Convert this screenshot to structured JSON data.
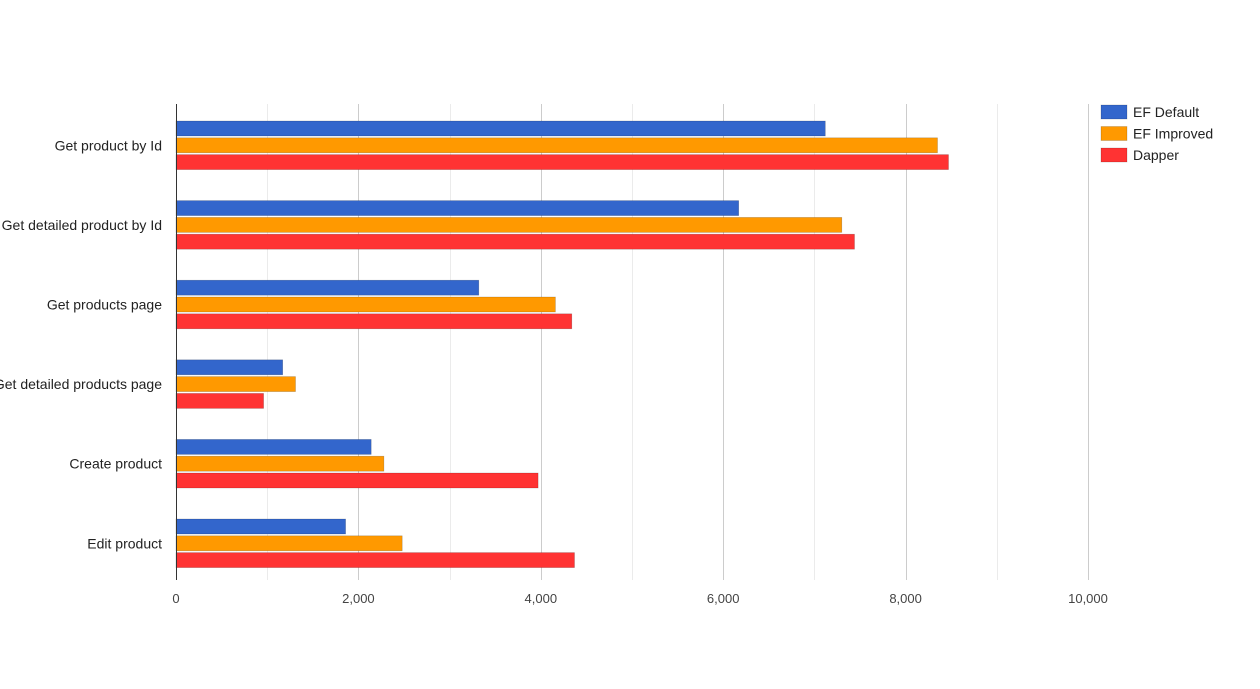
{
  "chart_data": {
    "type": "bar",
    "orientation": "horizontal",
    "title": "",
    "xlabel": "",
    "ylabel": "",
    "categories": [
      "Get product by Id",
      "Get detailed product by Id",
      "Get products page",
      "Get detailed products page",
      "Create product",
      "Edit product"
    ],
    "series": [
      {
        "name": "EF Default",
        "color": "#3366cc",
        "values": [
          7120,
          6170,
          3320,
          1170,
          2140,
          1860
        ]
      },
      {
        "name": "EF Improved",
        "color": "#ff9900",
        "values": [
          8350,
          7300,
          4160,
          1310,
          2280,
          2480
        ]
      },
      {
        "name": "Dapper",
        "color": "#ff3333",
        "values": [
          8470,
          7440,
          4340,
          960,
          3970,
          4370
        ]
      }
    ],
    "xlim": [
      0,
      10000
    ],
    "ticks": [
      {
        "value": 0,
        "label": "0"
      },
      {
        "value": 2000,
        "label": "2,000"
      },
      {
        "value": 4000,
        "label": "4,000"
      },
      {
        "value": 6000,
        "label": "6,000"
      },
      {
        "value": 8000,
        "label": "8,000"
      },
      {
        "value": 10000,
        "label": "10,000"
      }
    ],
    "minor_gridlines": [
      1000,
      3000,
      5000,
      7000,
      9000
    ],
    "grid": true,
    "legend_position": "top-right"
  }
}
